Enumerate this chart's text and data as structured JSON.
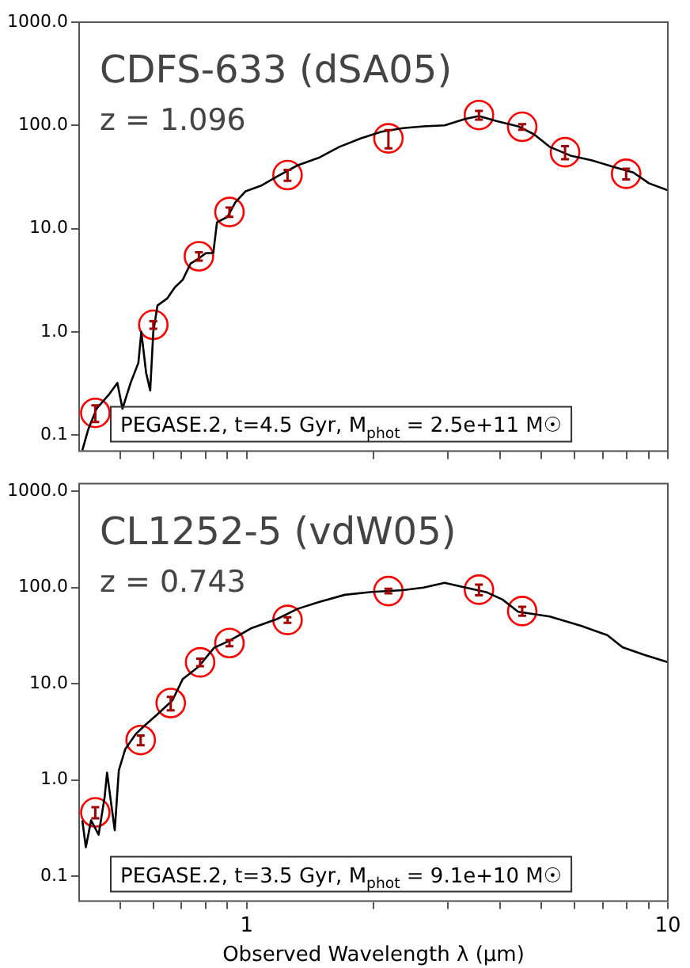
{
  "chart_data": [
    {
      "type": "line",
      "title": "CDFS-633 (dSA05)",
      "subtitle": "z = 1.096",
      "annotations": [
        "PEGASE.2, t=4.5 Gyr, M$_{phot}$ = 2.5e+11 M☉"
      ],
      "log": "xy",
      "grid": false,
      "legend": false,
      "tick_labels": "y",
      "xlim": [
        0.4,
        10
      ],
      "xticks": [
        {
          "value": 0.5,
          "label": null
        },
        {
          "value": 0.6,
          "label": null
        },
        {
          "value": 0.7,
          "label": null
        },
        {
          "value": 0.8,
          "label": null
        },
        {
          "value": 0.9,
          "label": null
        },
        {
          "value": 1,
          "label": null
        },
        {
          "value": 2,
          "label": null
        },
        {
          "value": 3,
          "label": null
        },
        {
          "value": 4,
          "label": null
        },
        {
          "value": 5,
          "label": null
        },
        {
          "value": 6,
          "label": null
        },
        {
          "value": 7,
          "label": null
        },
        {
          "value": 8,
          "label": null
        },
        {
          "value": 9,
          "label": null
        },
        {
          "value": 10,
          "label": null
        }
      ],
      "ylim": [
        0.07,
        1000
      ],
      "yticks": [
        {
          "value": 0.1,
          "label": "0.1"
        },
        {
          "value": 1,
          "label": "1.0"
        },
        {
          "value": 10,
          "label": "10.0"
        },
        {
          "value": 100,
          "label": "100.0"
        },
        {
          "value": 1000,
          "label": "1000.0"
        }
      ],
      "series": [
        {
          "color": "#000000",
          "marker": "none",
          "line_style": "solid",
          "x": [
            0.407,
            0.42,
            0.44,
            0.472,
            0.493,
            0.507,
            0.53,
            0.553,
            0.562,
            0.577,
            0.59,
            0.6,
            0.614,
            0.647,
            0.675,
            0.705,
            0.736,
            0.768,
            0.8,
            0.833,
            0.85,
            0.9,
            0.94,
            0.994,
            1.08,
            1.18,
            1.32,
            1.49,
            1.66,
            1.87,
            2.09,
            2.35,
            2.63,
            2.95,
            3.31,
            3.56,
            3.93,
            4.41,
            4.81,
            5.24,
            5.87,
            6.58,
            7.38,
            8.28,
            9.02,
            9.97
          ],
          "values": [
            0.071,
            0.112,
            0.18,
            0.25,
            0.32,
            0.18,
            0.32,
            0.5,
            1.0,
            0.4,
            0.27,
            1.0,
            1.8,
            2.1,
            2.7,
            3.2,
            4.6,
            5.1,
            5.8,
            5.8,
            11.5,
            13,
            18,
            23,
            26,
            32,
            41,
            49,
            62,
            75,
            87,
            94,
            98,
            100,
            116,
            123,
            110,
            98,
            82,
            62,
            51,
            46,
            40,
            35,
            27.5,
            23.6
          ]
        },
        {
          "type": "scatter",
          "color": "#ff0000",
          "marker": "circle",
          "x": [
            0.437,
            0.6,
            0.77,
            0.91,
            1.25,
            2.17,
            3.56,
            4.51,
            5.7,
            7.96
          ],
          "values": [
            0.164,
            1.17,
            5.4,
            14.5,
            33,
            75,
            126,
            97,
            55,
            34
          ],
          "errors": [
            0.03,
            0.1,
            0.5,
            1.5,
            4,
            15,
            12,
            6,
            8,
            4
          ]
        }
      ]
    },
    {
      "type": "line",
      "title": "CL1252-5 (vdW05)",
      "subtitle": "z = 0.743",
      "annotations": [
        "PEGASE.2, t=3.5 Gyr, M$_{phot}$ = 9.1e+10 M☉"
      ],
      "xlabel": "Observed Wavelength λ (μm)",
      "log": "xy",
      "grid": false,
      "legend": false,
      "xlim": [
        0.4,
        10
      ],
      "xticks": [
        {
          "value": 0.5,
          "label": null
        },
        {
          "value": 0.6,
          "label": null
        },
        {
          "value": 0.7,
          "label": null
        },
        {
          "value": 0.8,
          "label": null
        },
        {
          "value": 0.9,
          "label": null
        },
        {
          "value": 1,
          "label": "1"
        },
        {
          "value": 2,
          "label": null
        },
        {
          "value": 3,
          "label": null
        },
        {
          "value": 4,
          "label": null
        },
        {
          "value": 5,
          "label": null
        },
        {
          "value": 6,
          "label": null
        },
        {
          "value": 7,
          "label": null
        },
        {
          "value": 8,
          "label": null
        },
        {
          "value": 9,
          "label": null
        },
        {
          "value": 10,
          "label": "10"
        }
      ],
      "ylim": [
        0.055,
        1200
      ],
      "yticks": [
        {
          "value": 0.1,
          "label": "0.1"
        },
        {
          "value": 1,
          "label": "1.0"
        },
        {
          "value": 10,
          "label": "10.0"
        },
        {
          "value": 100,
          "label": "100.0"
        },
        {
          "value": 1000,
          "label": "1000.0"
        }
      ],
      "series": [
        {
          "color": "#000000",
          "marker": "none",
          "line_style": "solid",
          "x": [
            0.407,
            0.415,
            0.427,
            0.445,
            0.46,
            0.466,
            0.486,
            0.497,
            0.515,
            0.545,
            0.577,
            0.61,
            0.666,
            0.705,
            0.768,
            0.837,
            0.91,
            1.023,
            1.18,
            1.32,
            1.49,
            1.71,
            1.98,
            2.35,
            2.63,
            2.95,
            3.31,
            3.72,
            4.05,
            4.41,
            5.24,
            6.22,
            7.18,
            7.8,
            8.77,
            9.97
          ],
          "values": [
            0.38,
            0.2,
            0.38,
            0.27,
            0.67,
            1.19,
            0.3,
            1.26,
            2.1,
            3.0,
            3.8,
            4.7,
            6.7,
            11.2,
            15,
            23.7,
            28,
            37.6,
            47,
            60,
            71,
            84,
            90,
            94,
            100,
            112,
            100,
            89,
            75,
            56,
            50,
            40,
            32,
            24,
            20,
            16.8
          ]
        },
        {
          "type": "scatter",
          "color": "#ff0000",
          "marker": "circle",
          "x": [
            0.437,
            0.56,
            0.66,
            0.775,
            0.91,
            1.25,
            2.17,
            3.56,
            4.51
          ],
          "values": [
            0.46,
            2.6,
            6.3,
            16.7,
            26.5,
            46,
            92,
            95,
            57
          ],
          "errors": [
            0.06,
            0.3,
            1.0,
            1.5,
            2,
            3,
            5,
            12,
            6
          ]
        }
      ]
    }
  ]
}
